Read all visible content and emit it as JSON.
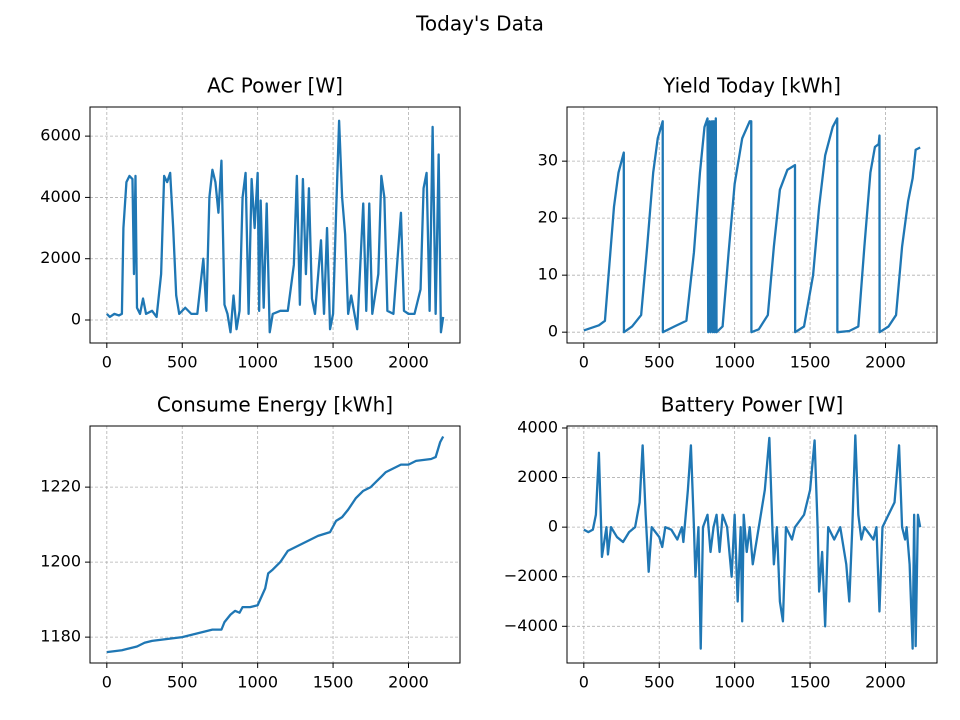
{
  "title": "Today's Data",
  "chart_data": [
    {
      "type": "line",
      "title": "AC Power [W]",
      "color": "#1f77b4",
      "grid": true,
      "xlim": [
        -111.5,
        2341.5
      ],
      "xticks": [
        0,
        500,
        1000,
        1500,
        2000
      ],
      "ylim": [
        -750,
        6950
      ],
      "yticks": [
        0,
        2000,
        4000,
        6000
      ],
      "x": [
        0,
        20,
        50,
        80,
        100,
        110,
        130,
        150,
        170,
        180,
        190,
        200,
        220,
        240,
        260,
        300,
        330,
        360,
        380,
        400,
        420,
        440,
        460,
        480,
        520,
        560,
        600,
        640,
        660,
        680,
        700,
        720,
        740,
        760,
        780,
        800,
        820,
        840,
        860,
        880,
        900,
        920,
        940,
        960,
        980,
        1000,
        1010,
        1020,
        1040,
        1060,
        1080,
        1100,
        1150,
        1200,
        1240,
        1260,
        1280,
        1300,
        1320,
        1340,
        1360,
        1380,
        1420,
        1440,
        1460,
        1480,
        1500,
        1520,
        1540,
        1560,
        1580,
        1600,
        1620,
        1660,
        1700,
        1720,
        1740,
        1760,
        1800,
        1820,
        1840,
        1860,
        1900,
        1950,
        1970,
        2000,
        2040,
        2080,
        2100,
        2120,
        2140,
        2160,
        2180,
        2200,
        2215,
        2230
      ],
      "values": [
        200,
        100,
        200,
        150,
        200,
        3000,
        4500,
        4700,
        4600,
        1500,
        4700,
        400,
        200,
        700,
        200,
        300,
        100,
        1500,
        4700,
        4500,
        4800,
        3000,
        800,
        200,
        400,
        200,
        200,
        2000,
        300,
        4000,
        4900,
        4500,
        3500,
        5200,
        500,
        200,
        -400,
        800,
        -300,
        300,
        4000,
        4800,
        200,
        4600,
        3000,
        4800,
        300,
        3900,
        400,
        3800,
        -400,
        200,
        300,
        300,
        1800,
        4700,
        500,
        4600,
        1500,
        4300,
        700,
        200,
        2600,
        200,
        3000,
        -300,
        200,
        3500,
        6500,
        4000,
        2800,
        200,
        800,
        -300,
        3800,
        300,
        3800,
        200,
        1500,
        4700,
        4000,
        300,
        200,
        3500,
        300,
        200,
        200,
        1000,
        4300,
        4800,
        300,
        6300,
        200,
        5400,
        -400,
        100
      ]
    },
    {
      "type": "line",
      "title": "Yield Today [kWh]",
      "color": "#1f77b4",
      "grid": true,
      "xlim": [
        -111.5,
        2341.5
      ],
      "xticks": [
        0,
        500,
        1000,
        1500,
        2000
      ],
      "ylim": [
        -1.9,
        39.5
      ],
      "yticks": [
        0,
        10,
        20,
        30
      ],
      "x": [
        0,
        100,
        140,
        170,
        200,
        230,
        265,
        266,
        320,
        380,
        420,
        460,
        490,
        523,
        524,
        600,
        680,
        730,
        770,
        800,
        820,
        825,
        835,
        840,
        850,
        855,
        862,
        868,
        875,
        880,
        920,
        960,
        1000,
        1050,
        1100,
        1110,
        1111,
        1160,
        1220,
        1260,
        1300,
        1350,
        1400,
        1401,
        1460,
        1520,
        1560,
        1600,
        1650,
        1680,
        1681,
        1760,
        1820,
        1860,
        1900,
        1930,
        1955,
        1960,
        1961,
        2020,
        2070,
        2110,
        2150,
        2180,
        2200,
        2230
      ],
      "values": [
        0.3,
        1.2,
        2,
        12,
        22,
        28,
        31.5,
        0,
        1,
        3,
        15,
        28,
        34,
        37,
        0,
        1,
        2,
        14,
        28,
        36,
        37.5,
        0,
        37,
        0,
        37,
        0,
        37,
        0,
        37.5,
        0,
        1,
        14,
        26,
        34,
        37,
        37,
        0,
        0.5,
        3,
        15,
        25,
        28.5,
        29.3,
        0,
        1,
        10,
        22,
        31,
        36,
        37.5,
        0,
        0.2,
        1,
        15,
        28,
        32.5,
        33,
        34.5,
        0,
        1,
        3,
        15,
        23,
        27,
        32,
        32.4
      ]
    },
    {
      "type": "line",
      "title": "Consume Energy [kWh]",
      "color": "#1f77b4",
      "grid": true,
      "xlim": [
        -111.5,
        2341.5
      ],
      "xticks": [
        0,
        500,
        1000,
        1500,
        2000
      ],
      "ylim": [
        1173.1,
        1236.3
      ],
      "yticks": [
        1180,
        1200,
        1220
      ],
      "x": [
        0,
        100,
        150,
        200,
        250,
        300,
        400,
        500,
        600,
        700,
        760,
        780,
        800,
        820,
        850,
        880,
        900,
        950,
        1000,
        1050,
        1070,
        1100,
        1150,
        1200,
        1250,
        1300,
        1350,
        1400,
        1480,
        1520,
        1560,
        1600,
        1650,
        1700,
        1750,
        1800,
        1850,
        1900,
        1950,
        2000,
        2050,
        2150,
        2180,
        2210,
        2230
      ],
      "values": [
        1176,
        1176.5,
        1177,
        1177.5,
        1178.5,
        1179,
        1179.5,
        1180,
        1181,
        1182,
        1182,
        1184,
        1185,
        1186,
        1187,
        1186.5,
        1188,
        1188,
        1188.5,
        1193,
        1197,
        1198,
        1200,
        1203,
        1204,
        1205,
        1206,
        1207,
        1208,
        1211,
        1212,
        1214,
        1217,
        1219,
        1220,
        1222,
        1224,
        1225,
        1226,
        1226,
        1227,
        1227.5,
        1228,
        1232,
        1233.5
      ]
    },
    {
      "type": "line",
      "title": "Battery Power [W]",
      "color": "#1f77b4",
      "grid": true,
      "xlim": [
        -111.5,
        2341.5
      ],
      "xticks": [
        0,
        500,
        1000,
        1500,
        2000
      ],
      "ylim": [
        -5480,
        4080
      ],
      "yticks": [
        {
          "value": -4000,
          "label": "−4000"
        },
        {
          "value": -2000,
          "label": "−2000"
        },
        0,
        2000,
        4000
      ],
      "x": [
        0,
        30,
        60,
        80,
        100,
        115,
        120,
        150,
        160,
        180,
        220,
        260,
        300,
        340,
        370,
        390,
        410,
        430,
        450,
        500,
        520,
        540,
        580,
        620,
        650,
        660,
        690,
        710,
        730,
        740,
        760,
        775,
        790,
        820,
        840,
        860,
        880,
        900,
        920,
        950,
        980,
        1000,
        1020,
        1040,
        1050,
        1060,
        1080,
        1100,
        1120,
        1160,
        1200,
        1230,
        1250,
        1260,
        1280,
        1300,
        1320,
        1340,
        1380,
        1400,
        1460,
        1500,
        1530,
        1550,
        1560,
        1580,
        1600,
        1620,
        1660,
        1700,
        1740,
        1760,
        1780,
        1800,
        1820,
        1840,
        1860,
        1920,
        1940,
        1960,
        1980,
        2060,
        2090,
        2110,
        2130,
        2140,
        2160,
        2180,
        2190,
        2200,
        2215,
        2230
      ],
      "values": [
        -100,
        -200,
        -100,
        500,
        3000,
        0,
        -1200,
        0,
        -1100,
        0,
        -400,
        -600,
        -200,
        0,
        1000,
        3300,
        500,
        -1800,
        0,
        -400,
        -800,
        0,
        -100,
        -500,
        0,
        -600,
        1500,
        3300,
        0,
        -2000,
        0,
        -4900,
        0,
        500,
        -1000,
        0,
        500,
        -1000,
        500,
        0,
        -2000,
        500,
        -3000,
        0,
        -3800,
        500,
        -1000,
        0,
        -1500,
        0,
        1500,
        3600,
        0,
        -1500,
        0,
        -3000,
        -3800,
        0,
        -500,
        0,
        500,
        1500,
        3500,
        0,
        -2600,
        -1000,
        -4000,
        0,
        -500,
        0,
        -1500,
        -3000,
        0,
        3700,
        500,
        -500,
        0,
        -500,
        0,
        -3400,
        0,
        1000,
        3300,
        0,
        -500,
        0,
        -1500,
        -4900,
        500,
        -4800,
        500,
        0
      ]
    }
  ]
}
